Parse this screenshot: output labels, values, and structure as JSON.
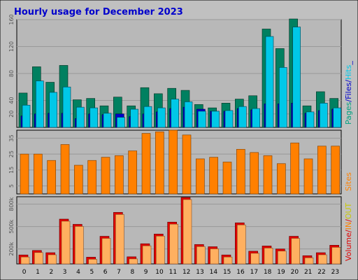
{
  "title": "Hourly usage for December 2023",
  "colors": {
    "background": "#c0c0c0",
    "plot": "#b8b8b8",
    "grid": "#999999",
    "title": "#0000cc",
    "hits": "#00c8e8",
    "files": "#0000cc",
    "pages": "#008060",
    "sites": "#ff8000",
    "kbytes": "#ffb060",
    "kbytes_in": "#e00000",
    "kbytes_out": "#aaaa00",
    "legend_pages": "#00a080",
    "legend_files": "#0000cc",
    "legend_hits": "#00c8e8",
    "legend_sites": "#ff8000",
    "legend_volume": "#e00000",
    "legend_in": "#ff8000",
    "legend_out": "#c8c800"
  },
  "chart_data": [
    {
      "type": "bar",
      "panel": "hits-files-pages",
      "ylim": [
        0,
        160
      ],
      "yticks": [
        "20",
        "40",
        "80",
        "120",
        "160"
      ],
      "ytick_values": [
        20,
        40,
        80,
        120,
        160
      ],
      "legend": [
        {
          "text": "Pages",
          "color": "legend_pages"
        },
        {
          "text": "/",
          "color": "legend_files"
        },
        {
          "text": "Files",
          "color": "legend_files"
        },
        {
          "text": "/",
          "color": "legend_files"
        },
        {
          "text": "Hits",
          "color": "legend_hits"
        },
        {
          "text": "_",
          "color": "legend_files"
        }
      ],
      "categories": [
        "0",
        "1",
        "2",
        "3",
        "4",
        "5",
        "6",
        "7",
        "8",
        "9",
        "10",
        "11",
        "12",
        "13",
        "14",
        "15",
        "16",
        "17",
        "18",
        "19",
        "20",
        "21",
        "22",
        "23"
      ],
      "series": [
        {
          "key": "pages",
          "values": [
            51,
            90,
            67,
            92,
            41,
            43,
            32,
            45,
            32,
            59,
            50,
            58,
            55,
            34,
            29,
            36,
            42,
            47,
            146,
            117,
            161,
            32,
            53,
            43
          ]
        },
        {
          "key": "files",
          "values": [
            17,
            20,
            21,
            21,
            13,
            20,
            19,
            20,
            16,
            20,
            23,
            28,
            30,
            27,
            24,
            24,
            28,
            26,
            35,
            35,
            36,
            21,
            25,
            27
          ]
        },
        {
          "key": "hits",
          "values": [
            33,
            69,
            52,
            60,
            30,
            29,
            21,
            15,
            27,
            31,
            29,
            42,
            38,
            24,
            24,
            25,
            31,
            28,
            135,
            89,
            149,
            23,
            36,
            29
          ]
        }
      ]
    },
    {
      "type": "bar",
      "panel": "sites",
      "ylim": [
        0,
        40
      ],
      "yticks": [
        "5",
        "15",
        "25",
        "35"
      ],
      "ytick_values": [
        5,
        15,
        25,
        35
      ],
      "legend": [
        {
          "text": "Sites",
          "color": "legend_sites"
        }
      ],
      "categories": [
        "0",
        "1",
        "2",
        "3",
        "4",
        "5",
        "6",
        "7",
        "8",
        "9",
        "10",
        "11",
        "12",
        "13",
        "14",
        "15",
        "16",
        "17",
        "18",
        "19",
        "20",
        "21",
        "22",
        "23"
      ],
      "series": [
        {
          "key": "sites",
          "values": [
            25,
            25,
            21,
            31,
            18,
            21,
            23,
            24,
            27,
            38,
            39,
            40,
            37,
            22,
            23,
            20,
            28,
            26,
            24,
            19,
            32,
            22,
            30,
            30
          ]
        }
      ]
    },
    {
      "type": "bar",
      "panel": "volume",
      "ylim": [
        0,
        900000
      ],
      "yticks": [
        "200k",
        "500k",
        "800k"
      ],
      "ytick_values": [
        200000,
        500000,
        800000
      ],
      "legend": [
        {
          "text": "Volume",
          "color": "legend_volume"
        },
        {
          "text": "/",
          "color": "legend_volume"
        },
        {
          "text": "IN",
          "color": "legend_in"
        },
        {
          "text": "/",
          "color": "legend_volume"
        },
        {
          "text": "OUT",
          "color": "legend_out"
        }
      ],
      "categories": [
        "0",
        "1",
        "2",
        "3",
        "4",
        "5",
        "6",
        "7",
        "8",
        "9",
        "10",
        "11",
        "12",
        "13",
        "14",
        "15",
        "16",
        "17",
        "18",
        "19",
        "20",
        "21",
        "22",
        "23"
      ],
      "series": [
        {
          "key": "kbytes",
          "values": [
            120000,
            180000,
            150000,
            600000,
            530000,
            90000,
            370000,
            690000,
            95000,
            270000,
            400000,
            560000,
            890000,
            260000,
            230000,
            120000,
            550000,
            170000,
            240000,
            200000,
            370000,
            110000,
            150000,
            250000
          ]
        }
      ]
    }
  ]
}
